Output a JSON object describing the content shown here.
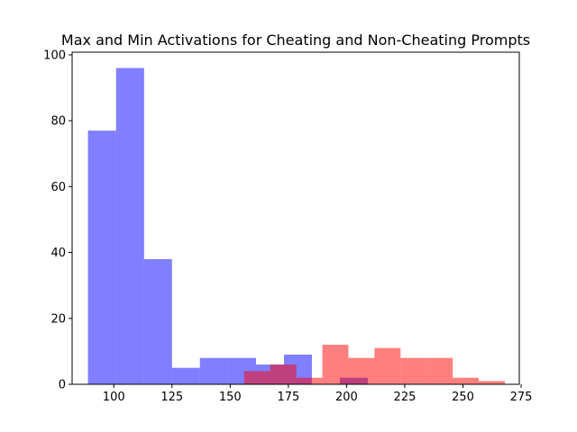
{
  "chart_data": {
    "type": "histogram",
    "title": "Max and Min Activations for Cheating and Non-Cheating Prompts",
    "xlabel": "",
    "ylabel": "",
    "xlim": [
      82.1,
      274.2
    ],
    "ylim": [
      0,
      100.8
    ],
    "xticks": [
      100,
      125,
      150,
      175,
      200,
      225,
      250,
      275
    ],
    "yticks": [
      0,
      20,
      40,
      60,
      80,
      100
    ],
    "grid": false,
    "series": [
      {
        "color": "#0000ff",
        "opacity": 0.5,
        "bins": [
          {
            "x0": 88.9,
            "x1": 101.0,
            "count": 77
          },
          {
            "x0": 101.0,
            "x1": 113.0,
            "count": 96
          },
          {
            "x0": 113.0,
            "x1": 125.0,
            "count": 38
          },
          {
            "x0": 125.0,
            "x1": 137.0,
            "count": 5
          },
          {
            "x0": 137.0,
            "x1": 149.0,
            "count": 8
          },
          {
            "x0": 149.0,
            "x1": 161.1,
            "count": 8
          },
          {
            "x0": 161.1,
            "x1": 173.1,
            "count": 6
          },
          {
            "x0": 173.1,
            "x1": 185.1,
            "count": 9
          },
          {
            "x0": 185.1,
            "x1": 197.1,
            "count": 0
          },
          {
            "x0": 197.1,
            "x1": 209.1,
            "count": 2
          }
        ]
      },
      {
        "color": "#ff0000",
        "opacity": 0.5,
        "bins": [
          {
            "x0": 156.0,
            "x1": 167.2,
            "count": 4
          },
          {
            "x0": 167.2,
            "x1": 178.4,
            "count": 6
          },
          {
            "x0": 178.4,
            "x1": 189.6,
            "count": 2
          },
          {
            "x0": 189.6,
            "x1": 200.8,
            "count": 12
          },
          {
            "x0": 200.8,
            "x1": 212.0,
            "count": 8
          },
          {
            "x0": 212.0,
            "x1": 223.2,
            "count": 11
          },
          {
            "x0": 223.2,
            "x1": 234.4,
            "count": 8
          },
          {
            "x0": 234.4,
            "x1": 245.6,
            "count": 8
          },
          {
            "x0": 245.6,
            "x1": 256.8,
            "count": 2
          },
          {
            "x0": 256.8,
            "x1": 268.0,
            "count": 1
          }
        ]
      }
    ]
  }
}
